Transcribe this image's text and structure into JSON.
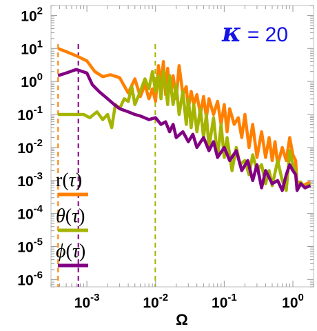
{
  "chart_data": {
    "type": "line",
    "x_scale": "log",
    "y_scale": "log",
    "xlabel": "Ω",
    "ylabel": "",
    "xlim": [
      0.0003,
      2
    ],
    "ylim": [
      6e-07,
      200
    ],
    "x_ticks": [
      {
        "value": 0.001,
        "base": "10",
        "exp": "-3"
      },
      {
        "value": 0.01,
        "base": "10",
        "exp": "-2"
      },
      {
        "value": 0.1,
        "base": "10",
        "exp": "-1"
      },
      {
        "value": 1,
        "base": "10",
        "exp": "0"
      }
    ],
    "y_ticks": [
      {
        "value": 100,
        "base": "10",
        "exp": "2"
      },
      {
        "value": 10,
        "base": "10",
        "exp": "1"
      },
      {
        "value": 1,
        "base": "10",
        "exp": "0"
      },
      {
        "value": 0.1,
        "base": "10",
        "exp": "-1"
      },
      {
        "value": 0.01,
        "base": "10",
        "exp": "-2"
      },
      {
        "value": 0.001,
        "base": "10",
        "exp": "-3"
      },
      {
        "value": 0.0001,
        "base": "10",
        "exp": "-4"
      },
      {
        "value": 1e-05,
        "base": "10",
        "exp": "-5"
      },
      {
        "value": 1e-06,
        "base": "10",
        "exp": "-6"
      }
    ],
    "annotation": {
      "symbol": "κ",
      "text": " = 20",
      "color": "#1414e6"
    },
    "legend_placement": "left",
    "series": [
      {
        "name": "r(τ)",
        "name_base": "r",
        "color": "#ff8000",
        "points": [
          [
            0.00038,
            10
          ],
          [
            0.0005,
            8
          ],
          [
            0.0007,
            6
          ],
          [
            0.001,
            4.2
          ],
          [
            0.0013,
            2
          ],
          [
            0.0017,
            1.4
          ],
          [
            0.0022,
            1.6
          ],
          [
            0.003,
            1.3
          ],
          [
            0.004,
            0.45
          ],
          [
            0.005,
            1.2
          ],
          [
            0.006,
            0.35
          ],
          [
            0.007,
            0.8
          ],
          [
            0.008,
            0.3
          ],
          [
            0.009,
            0.6
          ],
          [
            0.01,
            0.25
          ],
          [
            0.011,
            3
          ],
          [
            0.012,
            0.8
          ],
          [
            0.013,
            4
          ],
          [
            0.014,
            0.4
          ],
          [
            0.015,
            2.5
          ],
          [
            0.016,
            0.5
          ],
          [
            0.017,
            0.6
          ],
          [
            0.018,
            1.5
          ],
          [
            0.02,
            0.3
          ],
          [
            0.022,
            3
          ],
          [
            0.025,
            0.4
          ],
          [
            0.028,
            0.7
          ],
          [
            0.03,
            0.15
          ],
          [
            0.033,
            0.5
          ],
          [
            0.036,
            0.2
          ],
          [
            0.04,
            0.4
          ],
          [
            0.045,
            0.1
          ],
          [
            0.05,
            0.35
          ],
          [
            0.055,
            0.08
          ],
          [
            0.06,
            0.3
          ],
          [
            0.07,
            0.1
          ],
          [
            0.08,
            0.25
          ],
          [
            0.09,
            0.05
          ],
          [
            0.1,
            0.2
          ],
          [
            0.11,
            0.03
          ],
          [
            0.12,
            0.15
          ],
          [
            0.14,
            0.05
          ],
          [
            0.16,
            0.08
          ],
          [
            0.18,
            0.02
          ],
          [
            0.2,
            0.1
          ],
          [
            0.23,
            0.01
          ],
          [
            0.26,
            0.05
          ],
          [
            0.3,
            0.005
          ],
          [
            0.35,
            0.03
          ],
          [
            0.4,
            0.005
          ],
          [
            0.45,
            0.02
          ],
          [
            0.5,
            0.004
          ],
          [
            0.55,
            0.015
          ],
          [
            0.6,
            0.003
          ],
          [
            0.7,
            0.01
          ],
          [
            0.8,
            0.004
          ],
          [
            0.9,
            0.02
          ],
          [
            1,
            0.006
          ],
          [
            1.1,
            0.004
          ],
          [
            1.15,
            0.0006
          ],
          [
            1.25,
            0.0009
          ],
          [
            1.4,
            0.0007
          ],
          [
            1.6,
            0.0008
          ],
          [
            1.8,
            0.0009
          ]
        ]
      },
      {
        "name": "θ(τ)",
        "name_base": "θ",
        "color": "#a5b400",
        "points": [
          [
            0.00038,
            0.1
          ],
          [
            0.0006,
            0.1
          ],
          [
            0.0009,
            0.1
          ],
          [
            0.0011,
            0.08
          ],
          [
            0.0014,
            0.12
          ],
          [
            0.0017,
            0.07
          ],
          [
            0.002,
            0.1
          ],
          [
            0.0023,
            0.04
          ],
          [
            0.0026,
            0.2
          ],
          [
            0.003,
            0.15
          ],
          [
            0.0035,
            0.3
          ],
          [
            0.004,
            0.25
          ],
          [
            0.0045,
            0.7
          ],
          [
            0.005,
            0.2
          ],
          [
            0.006,
            0.5
          ],
          [
            0.007,
            1.2
          ],
          [
            0.008,
            0.6
          ],
          [
            0.009,
            2
          ],
          [
            0.01,
            0.5
          ],
          [
            0.011,
            1.5
          ],
          [
            0.012,
            0.3
          ],
          [
            0.013,
            2
          ],
          [
            0.014,
            0.8
          ],
          [
            0.015,
            0.2
          ],
          [
            0.016,
            1.5
          ],
          [
            0.018,
            0.2
          ],
          [
            0.02,
            0.8
          ],
          [
            0.022,
            0.1
          ],
          [
            0.025,
            0.5
          ],
          [
            0.028,
            0.05
          ],
          [
            0.03,
            0.3
          ],
          [
            0.033,
            0.04
          ],
          [
            0.036,
            0.2
          ],
          [
            0.04,
            0.03
          ],
          [
            0.045,
            0.15
          ],
          [
            0.05,
            0.02
          ],
          [
            0.055,
            0.1
          ],
          [
            0.06,
            0.01
          ],
          [
            0.07,
            0.08
          ],
          [
            0.08,
            0.005
          ],
          [
            0.09,
            0.05
          ],
          [
            0.1,
            0.005
          ],
          [
            0.11,
            0.02
          ],
          [
            0.13,
            0.002
          ],
          [
            0.15,
            0.01
          ],
          [
            0.17,
            0.003
          ],
          [
            0.2,
            0.004
          ],
          [
            0.23,
            0.0015
          ],
          [
            0.26,
            0.006
          ],
          [
            0.3,
            0.002
          ],
          [
            0.35,
            0.003
          ],
          [
            0.4,
            0.0008
          ],
          [
            0.45,
            0.002
          ],
          [
            0.5,
            0.0007
          ],
          [
            0.6,
            0.004
          ],
          [
            0.7,
            0.001
          ],
          [
            0.8,
            0.0005
          ],
          [
            0.9,
            0.008
          ],
          [
            1,
            0.003
          ],
          [
            1.1,
            0.002
          ],
          [
            1.15,
            0.0007
          ],
          [
            1.3,
            0.0009
          ],
          [
            1.5,
            0.0006
          ],
          [
            1.8,
            0.0008
          ]
        ]
      },
      {
        "name": "ϕ(τ)",
        "name_base": "ϕ",
        "color": "#820082",
        "points": [
          [
            0.00038,
            1.5
          ],
          [
            0.0005,
            1.8
          ],
          [
            0.0007,
            2.3
          ],
          [
            0.001,
            1.8
          ],
          [
            0.0012,
            0.8
          ],
          [
            0.0015,
            0.5
          ],
          [
            0.002,
            0.3
          ],
          [
            0.0025,
            0.2
          ],
          [
            0.003,
            0.15
          ],
          [
            0.004,
            0.12
          ],
          [
            0.005,
            0.1
          ],
          [
            0.006,
            0.09
          ],
          [
            0.008,
            0.07
          ],
          [
            0.01,
            0.08
          ],
          [
            0.012,
            0.05
          ],
          [
            0.014,
            0.06
          ],
          [
            0.016,
            0.03
          ],
          [
            0.018,
            0.05
          ],
          [
            0.02,
            0.02
          ],
          [
            0.025,
            0.03
          ],
          [
            0.03,
            0.015
          ],
          [
            0.035,
            0.025
          ],
          [
            0.04,
            0.01
          ],
          [
            0.05,
            0.02
          ],
          [
            0.06,
            0.008
          ],
          [
            0.07,
            0.015
          ],
          [
            0.08,
            0.005
          ],
          [
            0.1,
            0.01
          ],
          [
            0.12,
            0.004
          ],
          [
            0.15,
            0.008
          ],
          [
            0.18,
            0.002
          ],
          [
            0.22,
            0.004
          ],
          [
            0.26,
            0.001
          ],
          [
            0.3,
            0.003
          ],
          [
            0.35,
            0.0006
          ],
          [
            0.4,
            0.002
          ],
          [
            0.5,
            0.0008
          ],
          [
            0.6,
            0.001
          ],
          [
            0.7,
            0.0005
          ],
          [
            0.8,
            0.0015
          ],
          [
            0.9,
            0.003
          ],
          [
            1,
            0.002
          ],
          [
            1.1,
            0.0015
          ],
          [
            1.15,
            0.0005
          ],
          [
            1.3,
            0.0008
          ],
          [
            1.5,
            0.0006
          ],
          [
            1.8,
            0.0007
          ]
        ]
      }
    ],
    "vertical_lines": [
      {
        "x": 0.00038,
        "color": "#ff8000"
      },
      {
        "x": 0.00075,
        "color": "#820082"
      },
      {
        "x": 0.0099,
        "color": "#a5b400"
      }
    ]
  }
}
